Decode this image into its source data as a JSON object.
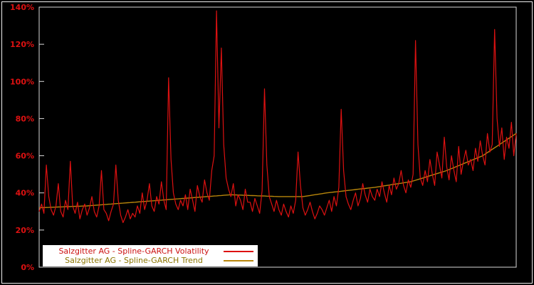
{
  "chart_data": {
    "type": "line",
    "title": "",
    "xlabel": "",
    "ylabel": "",
    "ylim": [
      0,
      140
    ],
    "y_ticks": [
      0,
      20,
      40,
      60,
      80,
      100,
      120,
      140
    ],
    "y_tick_suffix": "%",
    "grid": false,
    "background_color": "#000000",
    "frame_color": "#d9d9d9",
    "tick_label_color": "#dd1111",
    "legend_position": "bottom-left-inside",
    "legend_background": "#ffffff",
    "series": [
      {
        "name": "Salzgitter AG - Spline-GARCH Volatility",
        "color": "#dd1111",
        "legend_text_color": "#cc1111",
        "values": [
          30,
          34,
          29,
          55,
          38,
          31,
          28,
          33,
          45,
          30,
          27,
          36,
          31,
          57,
          33,
          29,
          35,
          26,
          31,
          34,
          28,
          32,
          38,
          30,
          27,
          33,
          52,
          31,
          29,
          25,
          30,
          34,
          55,
          36,
          28,
          24,
          27,
          31,
          26,
          29,
          27,
          33,
          29,
          40,
          31,
          36,
          45,
          33,
          30,
          38,
          34,
          46,
          36,
          31,
          102,
          58,
          40,
          34,
          31,
          36,
          33,
          39,
          31,
          42,
          36,
          30,
          44,
          38,
          35,
          47,
          40,
          36,
          52,
          60,
          138,
          75,
          118,
          66,
          48,
          42,
          38,
          45,
          33,
          39,
          36,
          31,
          42,
          35,
          35,
          30,
          37,
          33,
          29,
          41,
          96,
          55,
          38,
          34,
          30,
          36,
          31,
          28,
          34,
          30,
          27,
          33,
          29,
          36,
          62,
          44,
          32,
          28,
          31,
          35,
          30,
          26,
          29,
          33,
          31,
          28,
          32,
          36,
          30,
          38,
          33,
          43,
          85,
          52,
          38,
          34,
          31,
          36,
          40,
          33,
          37,
          45,
          39,
          35,
          42,
          38,
          36,
          42,
          38,
          46,
          40,
          35,
          44,
          39,
          48,
          42,
          45,
          52,
          44,
          40,
          47,
          43,
          50,
          122,
          66,
          48,
          44,
          52,
          46,
          58,
          50,
          44,
          62,
          55,
          48,
          70,
          54,
          47,
          60,
          52,
          46,
          65,
          50,
          57,
          63,
          55,
          58,
          52,
          64,
          57,
          68,
          60,
          55,
          72,
          62,
          66,
          128,
          80,
          65,
          75,
          58,
          70,
          64,
          78,
          60,
          72
        ]
      },
      {
        "name": "Salzgitter AG - Spline-GARCH Trend",
        "color": "#b8860b",
        "legend_text_color": "#8b7500",
        "control_points": [
          [
            0,
            32
          ],
          [
            20,
            33
          ],
          [
            40,
            35
          ],
          [
            60,
            37
          ],
          [
            80,
            39
          ],
          [
            100,
            38
          ],
          [
            110,
            38
          ],
          [
            120,
            40
          ],
          [
            140,
            43
          ],
          [
            155,
            46
          ],
          [
            170,
            52
          ],
          [
            185,
            60
          ],
          [
            199,
            72
          ]
        ]
      }
    ]
  }
}
